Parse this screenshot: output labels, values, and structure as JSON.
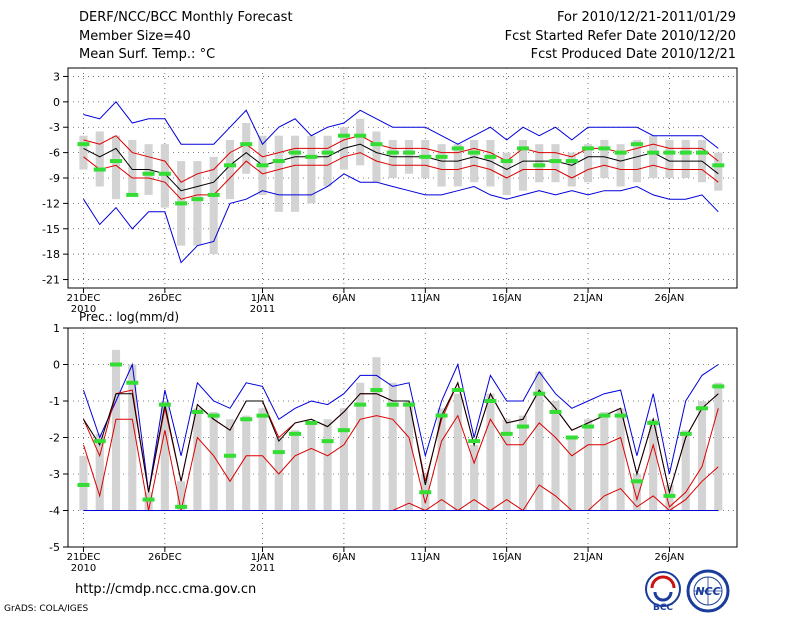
{
  "header": {
    "title": "DERF/NCC/BCC Monthly Forecast",
    "member_size": "Member Size=40",
    "variable": "Mean Surf. Temp.: °C",
    "forecast_period": "For 2010/12/21-2011/01/29",
    "started_date": "Fcst Started Refer Date 2010/12/20",
    "produced_date": "Fcst Produced Date 2010/12/21"
  },
  "footer": {
    "url": "http://cmdp.ncc.cma.gov.cn",
    "credit": "GrADS: COLA/IGES",
    "logo_bcc_text": "BCC",
    "logo_ncc_text": "NCC"
  },
  "colors": {
    "envelope": "#0000dd",
    "ensemble_mean": "#000000",
    "percentile_band": "#dd0000",
    "members_range": "#d3d3d3",
    "observed": "#33dd33",
    "grid": "#555555"
  },
  "chart_data": [
    {
      "type": "line",
      "title": "Mean Surf. Temp.: °C",
      "x_ticks": [
        {
          "day": 1,
          "label": "21DEC",
          "sub": "2010"
        },
        {
          "day": 6,
          "label": "26DEC",
          "sub": ""
        },
        {
          "day": 12,
          "label": "1JAN",
          "sub": "2011"
        },
        {
          "day": 17,
          "label": "6JAN",
          "sub": ""
        },
        {
          "day": 22,
          "label": "11JAN",
          "sub": ""
        },
        {
          "day": 27,
          "label": "16JAN",
          "sub": ""
        },
        {
          "day": 32,
          "label": "21JAN",
          "sub": ""
        },
        {
          "day": 37,
          "label": "26JAN",
          "sub": ""
        }
      ],
      "y_ticks": [
        3,
        0,
        -3,
        -6,
        -9,
        -12,
        -15,
        -18,
        -21
      ],
      "ylim": [
        -22,
        4
      ],
      "days": [
        1,
        2,
        3,
        4,
        5,
        6,
        7,
        8,
        9,
        10,
        11,
        12,
        13,
        14,
        15,
        16,
        17,
        18,
        19,
        20,
        21,
        22,
        23,
        24,
        25,
        26,
        27,
        28,
        29,
        30,
        31,
        32,
        33,
        34,
        35,
        36,
        37,
        38,
        39,
        40
      ],
      "series": [
        {
          "name": "max",
          "role": "envelope",
          "values": [
            -1.5,
            -2,
            0,
            -2.5,
            -2,
            -2,
            -5,
            -5,
            -5,
            -3,
            -1,
            -5,
            -3,
            -2,
            -4,
            -3,
            -2.5,
            -1,
            -2,
            -3,
            -3,
            -3,
            -4,
            -5,
            -4,
            -3,
            -4.5,
            -3,
            -4,
            -3,
            -4.5,
            -3,
            -3,
            -3,
            -3,
            -4,
            -4,
            -4,
            -4,
            -5.5
          ]
        },
        {
          "name": "p90",
          "role": "band",
          "values": [
            -4.5,
            -5,
            -4,
            -6,
            -6.5,
            -7,
            -9.5,
            -8.5,
            -8,
            -6,
            -5,
            -6.5,
            -6,
            -5.5,
            -5.5,
            -5.5,
            -4.5,
            -4,
            -5,
            -5.5,
            -5.5,
            -5.5,
            -6,
            -6,
            -5.5,
            -6,
            -7,
            -5.5,
            -6,
            -6,
            -6.5,
            -5.5,
            -5.5,
            -6,
            -5.5,
            -5,
            -5.5,
            -5.5,
            -5.5,
            -7
          ]
        },
        {
          "name": "mean",
          "role": "mean",
          "values": [
            -5.5,
            -6.5,
            -5.5,
            -8,
            -8,
            -8.5,
            -10.5,
            -10,
            -9.5,
            -7.5,
            -6,
            -7.5,
            -7,
            -6.5,
            -6.5,
            -6.5,
            -5.5,
            -5,
            -6,
            -6.5,
            -6.5,
            -6.5,
            -7,
            -7,
            -6.5,
            -7,
            -8,
            -7,
            -7,
            -7,
            -7.5,
            -6.5,
            -6.5,
            -7,
            -6.5,
            -6,
            -7,
            -7,
            -7,
            -8.5
          ]
        },
        {
          "name": "p10",
          "role": "band",
          "values": [
            -6.5,
            -8,
            -7.5,
            -9,
            -9,
            -9.5,
            -11.5,
            -11,
            -11,
            -9,
            -7,
            -8.5,
            -8,
            -7.5,
            -7.5,
            -7.5,
            -6.5,
            -6,
            -7,
            -7.5,
            -7.5,
            -7.5,
            -8,
            -8,
            -7.5,
            -8,
            -9,
            -8,
            -8,
            -8,
            -9,
            -8,
            -7.5,
            -8,
            -8,
            -7.5,
            -8,
            -8,
            -8,
            -9.5
          ]
        },
        {
          "name": "min",
          "role": "envelope",
          "values": [
            -11.5,
            -14.5,
            -12.5,
            -15,
            -13,
            -13,
            -19,
            -17,
            -16.5,
            -12,
            -11.5,
            -10.5,
            -11,
            -11,
            -11,
            -10,
            -8.5,
            -9.5,
            -9.5,
            -10,
            -10.5,
            -11,
            -11,
            -10.5,
            -10,
            -11,
            -11.5,
            -11,
            -10.5,
            -11,
            -10.5,
            -11,
            -10.5,
            -10.5,
            -10,
            -11,
            -11.5,
            -11.5,
            -11,
            -13
          ]
        },
        {
          "name": "range_high",
          "role": "bar",
          "values": [
            -4,
            -3.5,
            -4,
            -4.5,
            -5,
            -5,
            -7,
            -7,
            -6.5,
            -4.5,
            -2.5,
            -4,
            -4,
            -4,
            -4,
            -4,
            -3,
            -2,
            -3.5,
            -4.5,
            -4.5,
            -4.5,
            -5,
            -5,
            -4.5,
            -4.5,
            -6,
            -4.5,
            -5,
            -5,
            -6,
            -5,
            -4.5,
            -5,
            -4.5,
            -4,
            -4.5,
            -4.5,
            -4.5,
            -6
          ]
        },
        {
          "name": "range_low",
          "role": "bar",
          "values": [
            -8,
            -10,
            -11.5,
            -11,
            -11,
            -12.5,
            -17,
            -17,
            -18,
            -11.5,
            -8.5,
            -11,
            -13,
            -13,
            -12,
            -10,
            -8,
            -7.5,
            -9.5,
            -9,
            -8.5,
            -9,
            -10,
            -10,
            -9.5,
            -10,
            -11,
            -10.5,
            -9.5,
            -9.5,
            -10,
            -9.5,
            -9,
            -10,
            -9.5,
            -9,
            -9,
            -9,
            -9.5,
            -10.5
          ]
        },
        {
          "name": "observed",
          "role": "obs",
          "values": [
            -5,
            -8,
            -7,
            -11,
            -8.5,
            -8.5,
            -12,
            -11.5,
            -11,
            -7.5,
            -5,
            -7.5,
            -7,
            -6,
            -6.5,
            -6,
            -4,
            -4,
            -5,
            -6,
            -6,
            -6.5,
            -6.5,
            -5.5,
            -6,
            -6.5,
            -7,
            -5.5,
            -7.5,
            -7,
            -7,
            -5.5,
            -5.5,
            -6,
            -5,
            -6,
            -6,
            -6,
            -6,
            -7.5
          ]
        }
      ]
    },
    {
      "type": "line",
      "title": "Prec.: log(mm/d)",
      "x_ticks": [
        {
          "day": 1,
          "label": "21DEC",
          "sub": "2010"
        },
        {
          "day": 6,
          "label": "26DEC",
          "sub": ""
        },
        {
          "day": 12,
          "label": "1JAN",
          "sub": "2011"
        },
        {
          "day": 17,
          "label": "6JAN",
          "sub": ""
        },
        {
          "day": 22,
          "label": "11JAN",
          "sub": ""
        },
        {
          "day": 27,
          "label": "16JAN",
          "sub": ""
        },
        {
          "day": 32,
          "label": "21JAN",
          "sub": ""
        },
        {
          "day": 37,
          "label": "26JAN",
          "sub": ""
        }
      ],
      "y_ticks": [
        1,
        0,
        -1,
        -2,
        -3,
        -4,
        -5
      ],
      "ylim": [
        -5,
        1
      ],
      "days": [
        1,
        2,
        3,
        4,
        5,
        6,
        7,
        8,
        9,
        10,
        11,
        12,
        13,
        14,
        15,
        16,
        17,
        18,
        19,
        20,
        21,
        22,
        23,
        24,
        25,
        26,
        27,
        28,
        29,
        30,
        31,
        32,
        33,
        34,
        35,
        36,
        37,
        38,
        39,
        40
      ],
      "series": [
        {
          "name": "max",
          "role": "envelope",
          "values": [
            -0.7,
            -2,
            -1,
            0,
            -3.5,
            -0.7,
            -2.5,
            -0.5,
            -1,
            -1.2,
            -0.5,
            -0.6,
            -1.5,
            -1.2,
            -1,
            -1.1,
            -0.8,
            -0.3,
            -0.3,
            -0.6,
            -0.5,
            -2.5,
            -1,
            0,
            -2,
            -0.3,
            -1,
            -1,
            -0.2,
            -0.8,
            -1.2,
            -1,
            -0.8,
            -0.7,
            -2.5,
            -0.8,
            -3,
            -1,
            -0.3,
            0
          ]
        },
        {
          "name": "p90",
          "role": "band",
          "values": [
            -1.5,
            -2.5,
            -0.8,
            -0.7,
            -3.5,
            -1.2,
            -3.2,
            -1.1,
            -1.5,
            -1.8,
            -1,
            -1,
            -2,
            -1.6,
            -1.5,
            -1.7,
            -1.3,
            -0.8,
            -0.8,
            -1,
            -1,
            -3.2,
            -1.5,
            -0.5,
            -2.2,
            -0.8,
            -1.6,
            -1.5,
            -0.7,
            -1.2,
            -1.8,
            -1.6,
            -1.4,
            -1.2,
            -3,
            -1.5,
            -3.5,
            -2,
            -1.2,
            -0.8
          ]
        },
        {
          "name": "mean",
          "role": "mean",
          "values": [
            -1.5,
            -2.2,
            -0.8,
            -0.8,
            -3.5,
            -1.1,
            -3.2,
            -1.1,
            -1.5,
            -1.8,
            -1,
            -1,
            -2.1,
            -1.6,
            -1.5,
            -1.7,
            -1.3,
            -0.8,
            -0.8,
            -1,
            -1,
            -3.3,
            -1.4,
            -0.5,
            -2.2,
            -0.8,
            -1.6,
            -1.5,
            -0.7,
            -1.2,
            -1.8,
            -1.6,
            -1.4,
            -1.2,
            -3,
            -1.5,
            -3.5,
            -2,
            -1.2,
            -0.8
          ]
        },
        {
          "name": "p10",
          "role": "band",
          "values": [
            -2.2,
            -3.6,
            -1.5,
            -1.5,
            -4,
            -1.8,
            -4,
            -2,
            -2.5,
            -3.2,
            -2.5,
            -2.5,
            -3,
            -2.5,
            -2.3,
            -2.5,
            -2.2,
            -1.5,
            -1.4,
            -1.5,
            -2,
            -3.8,
            -2.1,
            -1.4,
            -2.7,
            -1.5,
            -2.2,
            -2.2,
            -1.6,
            -2,
            -2.5,
            -2.2,
            -2.2,
            -2,
            -3.7,
            -2.2,
            -3.9,
            -3.5,
            -2.8,
            -1.2
          ]
        },
        {
          "name": "p10_floor",
          "role": "band",
          "values": [
            -4,
            -4,
            -4,
            -4,
            -4,
            -4,
            -4,
            -4,
            -4,
            -4,
            -4,
            -4,
            -4,
            -4,
            -4,
            -4,
            -4,
            -4,
            -4,
            -4,
            -3.8,
            -4,
            -3.7,
            -4,
            -3.7,
            -4,
            -3.7,
            -4,
            -3.3,
            -3.6,
            -4,
            -4,
            -3.6,
            -3.4,
            -3.9,
            -3.6,
            -4,
            -3.7,
            -3.2,
            -2.8
          ]
        },
        {
          "name": "min",
          "role": "envelope",
          "values": [
            -4,
            -4,
            -4,
            -4,
            -4,
            -4,
            -4,
            -4,
            -4,
            -4,
            -4,
            -4,
            -4,
            -4,
            -4,
            -4,
            -4,
            -4,
            -4,
            -4,
            -4,
            -4,
            -4,
            -4,
            -4,
            -4,
            -4,
            -4,
            -4,
            -4,
            -4,
            -4,
            -4,
            -4,
            -4,
            -4,
            -4,
            -4,
            -4,
            -4
          ]
        },
        {
          "name": "range_high",
          "role": "bar",
          "values": [
            -2.5,
            -1.9,
            0.4,
            0,
            -3.5,
            -1,
            -3.2,
            -1.2,
            -1.3,
            -1.5,
            -1.4,
            -1.2,
            -2,
            -1.8,
            -1.6,
            -1.5,
            -1.2,
            -0.5,
            0.2,
            -0.5,
            -1,
            -3,
            -1.2,
            -0.8,
            -2.2,
            -0.8,
            -1.5,
            -1.4,
            -0.2,
            -1,
            -2,
            -1.5,
            -1.3,
            -1.2,
            -3,
            -1.5,
            -3.3,
            -1.8,
            -1,
            -0.5
          ]
        },
        {
          "name": "range_low",
          "role": "bar",
          "values": [
            -4,
            -4,
            -4,
            -4,
            -4,
            -4,
            -4,
            -4,
            -4,
            -4,
            -4,
            -4,
            -4,
            -4,
            -4,
            -4,
            -4,
            -4,
            -4,
            -4,
            -4,
            -4,
            -4,
            -4,
            -4,
            -4,
            -4,
            -4,
            -4,
            -4,
            -4,
            -4,
            -4,
            -4,
            -4,
            -4,
            -4,
            -4,
            -4,
            -4
          ]
        },
        {
          "name": "observed",
          "role": "obs",
          "values": [
            -3.3,
            -2.1,
            0,
            -0.5,
            -3.7,
            -1.1,
            -3.9,
            -1.3,
            -1.4,
            -2.5,
            -1.5,
            -1.4,
            -2.4,
            -1.9,
            -1.6,
            -2.1,
            -1.8,
            -1.1,
            -0.7,
            -1.1,
            -1.1,
            -3.5,
            -1.4,
            -0.7,
            -2.1,
            -1,
            -1.9,
            -1.7,
            -0.8,
            -1.3,
            -2,
            -1.7,
            -1.4,
            -1.4,
            -3.2,
            -1.6,
            -3.6,
            -1.9,
            -1.2,
            -0.6
          ]
        }
      ]
    }
  ]
}
